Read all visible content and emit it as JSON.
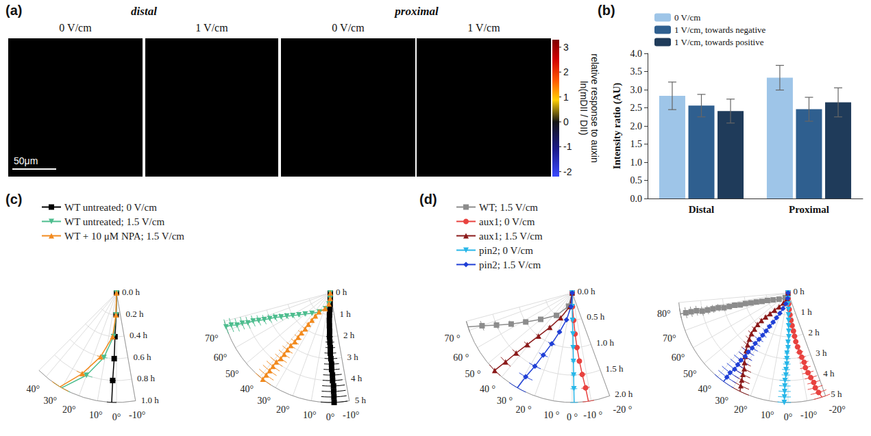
{
  "panel_labels": [
    "(a)",
    "(b)",
    "(c)",
    "(d)"
  ],
  "image_panel": {
    "group_titles": [
      "distal",
      "proximal"
    ],
    "image_titles": [
      "0 V/cm",
      "1 V/cm",
      "0 V/cm",
      "1 V/cm"
    ],
    "scale_bar": "50μm",
    "colorbar_label": [
      "relative response to auxin",
      "ln(mDII / DII)"
    ],
    "colorbar_lim": [
      -2.2,
      3.3
    ],
    "colorbar_ticks": [
      3,
      2,
      1,
      0,
      -1,
      -2
    ]
  },
  "chart_data": [
    {
      "type": "bar",
      "categories": [
        "Distal",
        "Proximal"
      ],
      "ylabel": "Intensity ratio (AU)",
      "ylim": [
        0,
        4
      ],
      "yticks": [
        {
          "value": 0,
          "label": "0.0"
        },
        0.5,
        {
          "value": 1,
          "label": "1.0"
        },
        1.5,
        {
          "value": 2,
          "label": "2.0"
        },
        2.5,
        {
          "value": 3,
          "label": "3.0"
        },
        3.5,
        {
          "value": 4,
          "label": "4.0"
        }
      ],
      "grid": false,
      "legend": "top",
      "series": [
        {
          "name": "0 V/cm",
          "color": "#9ec5e8",
          "values": [
            2.83,
            3.33
          ],
          "errors": [
            0.38,
            0.34
          ]
        },
        {
          "name": "1 V/cm, towards negative",
          "color": "#2f5f8f",
          "values": [
            2.56,
            2.46
          ],
          "errors": [
            0.31,
            0.33
          ]
        },
        {
          "name": "1 V/cm, towards positive",
          "color": "#1f3b5a",
          "values": [
            2.41,
            2.65
          ],
          "errors": [
            0.33,
            0.4
          ]
        }
      ]
    },
    {
      "type": "polar",
      "grid": true,
      "legend": "top",
      "series": [
        {
          "name": "WT untreated; 0 V/cm",
          "color": "#000000",
          "marker": "square"
        },
        {
          "name": "WT untreated; 1.5 V/cm",
          "color": "#4dbd8e",
          "marker": "triangle-down"
        },
        {
          "name": "WT + 10 μM NPA; 1.5 V/cm",
          "color": "#f28a1e",
          "marker": "triangle"
        }
      ],
      "plots": [
        {
          "radius": [
            0,
            0.2,
            0.4,
            0.6,
            0.8,
            1.0
          ],
          "radius_lim": [
            0,
            1.0
          ],
          "radius_ticks": [
            {
              "value": 0,
              "label": "0.0 h"
            },
            {
              "value": 0.2,
              "label": "0.2 h"
            },
            {
              "value": 0.4,
              "label": "0.4 h"
            },
            {
              "value": 0.6,
              "label": "0.6 h"
            },
            {
              "value": 0.8,
              "label": "0.8 h"
            },
            {
              "value": 1.0,
              "label": "1.0 h"
            }
          ],
          "angle_lim": [
            -10,
            45
          ],
          "angle_ticks": [
            {
              "value": -10,
              "label": "-10°"
            },
            {
              "value": 0,
              "label": "0°"
            },
            {
              "value": 10,
              "label": "10°"
            },
            {
              "value": 20,
              "label": "20°"
            },
            {
              "value": 30,
              "label": "30°"
            },
            {
              "value": 40,
              "label": "40°"
            }
          ],
          "values": [
            [
              0,
              1,
              2,
              2,
              2.5,
              2.5
            ],
            [
              0,
              1,
              4,
              11,
              20,
              30
            ],
            [
              0,
              1.5,
              5,
              14,
              23,
              31
            ]
          ],
          "errors": [
            [
              0,
              1,
              1.5,
              2,
              2,
              2.5
            ],
            [
              0,
              1,
              2,
              3,
              4,
              5
            ],
            [
              0,
              1,
              2,
              3,
              4,
              5
            ]
          ]
        },
        {
          "radius": [
            0,
            0.25,
            0.5,
            0.75,
            1,
            1.25,
            1.5,
            1.75,
            2,
            2.25,
            2.5,
            2.75,
            3,
            3.25,
            3.5,
            3.75,
            4,
            4.25,
            4.5,
            4.75,
            5
          ],
          "radius_lim": [
            0,
            5
          ],
          "radius_ticks": [
            {
              "value": 0,
              "label": "0 h"
            },
            {
              "value": 1,
              "label": "1 h"
            },
            {
              "value": 2,
              "label": "2 h"
            },
            {
              "value": 3,
              "label": "3 h"
            },
            {
              "value": 4,
              "label": "4 h"
            },
            {
              "value": 5,
              "label": "5 h"
            }
          ],
          "angle_lim": [
            -10,
            75
          ],
          "angle_ticks": [
            {
              "value": -10,
              "label": "-10°"
            },
            {
              "value": 0,
              "label": "0°"
            },
            {
              "value": 10,
              "label": "10°"
            },
            {
              "value": 20,
              "label": "20°"
            },
            {
              "value": 30,
              "label": "30°"
            },
            {
              "value": 40,
              "label": "40°"
            },
            {
              "value": 50,
              "label": "50°"
            },
            {
              "value": 60,
              "label": "60°"
            },
            {
              "value": 70,
              "label": "70°"
            }
          ],
          "values": [
            [
              0,
              0.5,
              1,
              1.5,
              2,
              2,
              1.5,
              1,
              1,
              0.5,
              0,
              0,
              -0.5,
              -1,
              -1,
              -1.5,
              -1.5,
              -2,
              -2,
              -2,
              -2
            ],
            [
              0,
              2,
              7,
              17,
              30,
              42,
              50,
              55,
              59,
              62,
              64,
              66,
              67,
              68,
              69,
              70,
              70,
              71,
              71,
              72,
              72
            ],
            [
              0,
              1.5,
              7,
              18,
              31,
              33,
              34,
              35,
              35,
              36,
              36,
              36,
              37,
              37,
              37,
              37,
              38,
              38,
              38,
              38,
              38
            ]
          ],
          "errors": [
            [
              0,
              1,
              1.5,
              2,
              2.5,
              3,
              3.5,
              4,
              4.5,
              5,
              5,
              5.5,
              5.5,
              6,
              6,
              6.5,
              6.5,
              7,
              7,
              7,
              7
            ],
            [
              0,
              1,
              2,
              3,
              4,
              4,
              4,
              4,
              4,
              4,
              4,
              4,
              4,
              4,
              4,
              4,
              4,
              4,
              4,
              4,
              4
            ],
            [
              0,
              1,
              2,
              3,
              4,
              4,
              4,
              4,
              4,
              4.5,
              4.5,
              4.5,
              4.5,
              5,
              5,
              5,
              5,
              5,
              5,
              5,
              5
            ]
          ]
        }
      ]
    },
    {
      "type": "polar",
      "grid": true,
      "legend": "top",
      "series": [
        {
          "name": "WT; 1.5 V/cm",
          "color": "#8c8c8c",
          "marker": "square"
        },
        {
          "name": "aux1; 0 V/cm",
          "color": "#e8423f",
          "marker": "circle"
        },
        {
          "name": "aux1; 1.5 V/cm",
          "color": "#8b1a1a",
          "marker": "triangle"
        },
        {
          "name": "pin2; 0 V/cm",
          "color": "#27b6e8",
          "marker": "triangle-down"
        },
        {
          "name": "pin2; 1.5 V/cm",
          "color": "#1f3fd6",
          "marker": "diamond"
        }
      ],
      "plots": [
        {
          "radius": [
            0,
            0.25,
            0.5,
            0.75,
            1,
            1.25,
            1.5,
            1.75,
            2
          ],
          "radius_lim": [
            0,
            2
          ],
          "radius_ticks": [
            {
              "value": 0,
              "label": "0.0 h"
            },
            {
              "value": 0.5,
              "label": "0.5 h"
            },
            {
              "value": 1,
              "label": "1.0 h"
            },
            {
              "value": 1.5,
              "label": "1.5 h"
            },
            {
              "value": 2,
              "label": "2.0 h"
            }
          ],
          "angle_lim": [
            -20,
            75
          ],
          "angle_ticks": [
            {
              "value": -20,
              "label": "-20 °"
            },
            {
              "value": -10,
              "label": "-10 °"
            },
            {
              "value": 0,
              "label": "0 °"
            },
            {
              "value": 10,
              "label": "10 °"
            },
            {
              "value": 20,
              "label": "20 °"
            },
            {
              "value": 30,
              "label": "30 °"
            },
            {
              "value": 40,
              "label": "40 °"
            },
            {
              "value": 50,
              "label": "50 °"
            },
            {
              "value": 60,
              "label": "60 °"
            },
            {
              "value": 70,
              "label": "70 °"
            }
          ],
          "values": [
            [
              0,
              15,
              35,
              50,
              58,
              63,
              67,
              70,
              72
            ],
            [
              0,
              -1,
              -3,
              -4,
              -5,
              -6,
              -7,
              -8,
              -8.5
            ],
            [
              0,
              10,
              25,
              33,
              38,
              41,
              43,
              44,
              45
            ],
            [
              0,
              0,
              -0.5,
              -1,
              -1,
              -1,
              -1,
              -1,
              -1
            ],
            [
              0,
              5,
              12,
              18,
              22,
              25,
              27,
              29,
              30
            ]
          ],
          "errors": [
            [
              0,
              2,
              3,
              3,
              3,
              3,
              3,
              3,
              3
            ],
            [
              0,
              1,
              1,
              1.5,
              2,
              2,
              2.5,
              2.5,
              3
            ],
            [
              0,
              2,
              2.5,
              3,
              3,
              3.5,
              3.5,
              4,
              4
            ],
            [
              0,
              1,
              1,
              1.5,
              1.5,
              2,
              2,
              2,
              2
            ],
            [
              0,
              2,
              3,
              3.5,
              4,
              4,
              4.5,
              4.5,
              5
            ]
          ]
        },
        {
          "radius": [
            0,
            0.25,
            0.5,
            0.75,
            1,
            1.25,
            1.5,
            1.75,
            2,
            2.25,
            2.5,
            2.75,
            3,
            3.25,
            3.5,
            3.75,
            4,
            4.25,
            4.5,
            4.75,
            5
          ],
          "radius_lim": [
            0,
            5
          ],
          "radius_ticks": [
            {
              "value": 0,
              "label": "0 h"
            },
            {
              "value": 1,
              "label": "1 h"
            },
            {
              "value": 2,
              "label": "2 h"
            },
            {
              "value": 3,
              "label": "3 h"
            },
            {
              "value": 4,
              "label": "4 h"
            },
            {
              "value": 5,
              "label": "5 h"
            }
          ],
          "angle_lim": [
            -20,
            85
          ],
          "angle_ticks": [
            {
              "value": -20,
              "label": "-20°"
            },
            {
              "value": -10,
              "label": "-10°"
            },
            {
              "value": 0,
              "label": "0°"
            },
            {
              "value": 10,
              "label": "10°"
            },
            {
              "value": 20,
              "label": "20°"
            },
            {
              "value": 30,
              "label": "30°"
            },
            {
              "value": 40,
              "label": "40°"
            },
            {
              "value": 50,
              "label": "50°"
            },
            {
              "value": 60,
              "label": "60°"
            },
            {
              "value": 70,
              "label": "70°"
            },
            {
              "value": 80,
              "label": "80°"
            }
          ],
          "values": [
            [
              0,
              30,
              55,
              65,
              70,
              72,
              74,
              75,
              76,
              76,
              77,
              77,
              77,
              78,
              78,
              78,
              78,
              79,
              79,
              79,
              79
            ],
            [
              0,
              -1,
              -3,
              -4,
              -5,
              -6,
              -7,
              -8,
              -8.5,
              -9,
              -10,
              -11,
              -12,
              -13,
              -13,
              -14,
              -15,
              -16,
              -16,
              -17,
              -18
            ],
            [
              0,
              10,
              25,
              33,
              38,
              41,
              43,
              44,
              44,
              43,
              42,
              40,
              38,
              36,
              34,
              32,
              30,
              29,
              28,
              27,
              26
            ],
            [
              0,
              0,
              -0.5,
              -1,
              -1,
              -1,
              -1,
              -1,
              -1,
              0,
              0,
              1,
              1,
              1,
              1.5,
              1.5,
              2,
              2,
              2,
              2,
              2
            ],
            [
              0,
              5,
              12,
              18,
              22,
              25,
              27,
              29,
              30,
              31,
              32,
              33,
              33,
              34,
              34,
              35,
              35,
              35,
              36,
              36,
              36
            ]
          ],
          "errors": [
            [
              0,
              3,
              3,
              3,
              3,
              3,
              3,
              3,
              3,
              3,
              3,
              3,
              3,
              3,
              3,
              3,
              3,
              3,
              3,
              3,
              3
            ],
            [
              0,
              1,
              1,
              1.5,
              2,
              2,
              2.5,
              2.5,
              3,
              3,
              3,
              3.5,
              3.5,
              3.5,
              4,
              4,
              4,
              4,
              4.5,
              4.5,
              4.5
            ],
            [
              0,
              2,
              2.5,
              3,
              3,
              3.5,
              3.5,
              4,
              4,
              4,
              4.5,
              4.5,
              4.5,
              5,
              5,
              5,
              5,
              5,
              5,
              5,
              5
            ],
            [
              0,
              1,
              1,
              1.5,
              1.5,
              2,
              2,
              2,
              2,
              2.5,
              2.5,
              2.5,
              3,
              3,
              3,
              3,
              3.5,
              3.5,
              3.5,
              3.5,
              3.5
            ],
            [
              0,
              2,
              3,
              3.5,
              4,
              4,
              4.5,
              4.5,
              5,
              5,
              5,
              5.5,
              5.5,
              5.5,
              6,
              6,
              6,
              6,
              6,
              6,
              6
            ]
          ]
        }
      ]
    }
  ]
}
